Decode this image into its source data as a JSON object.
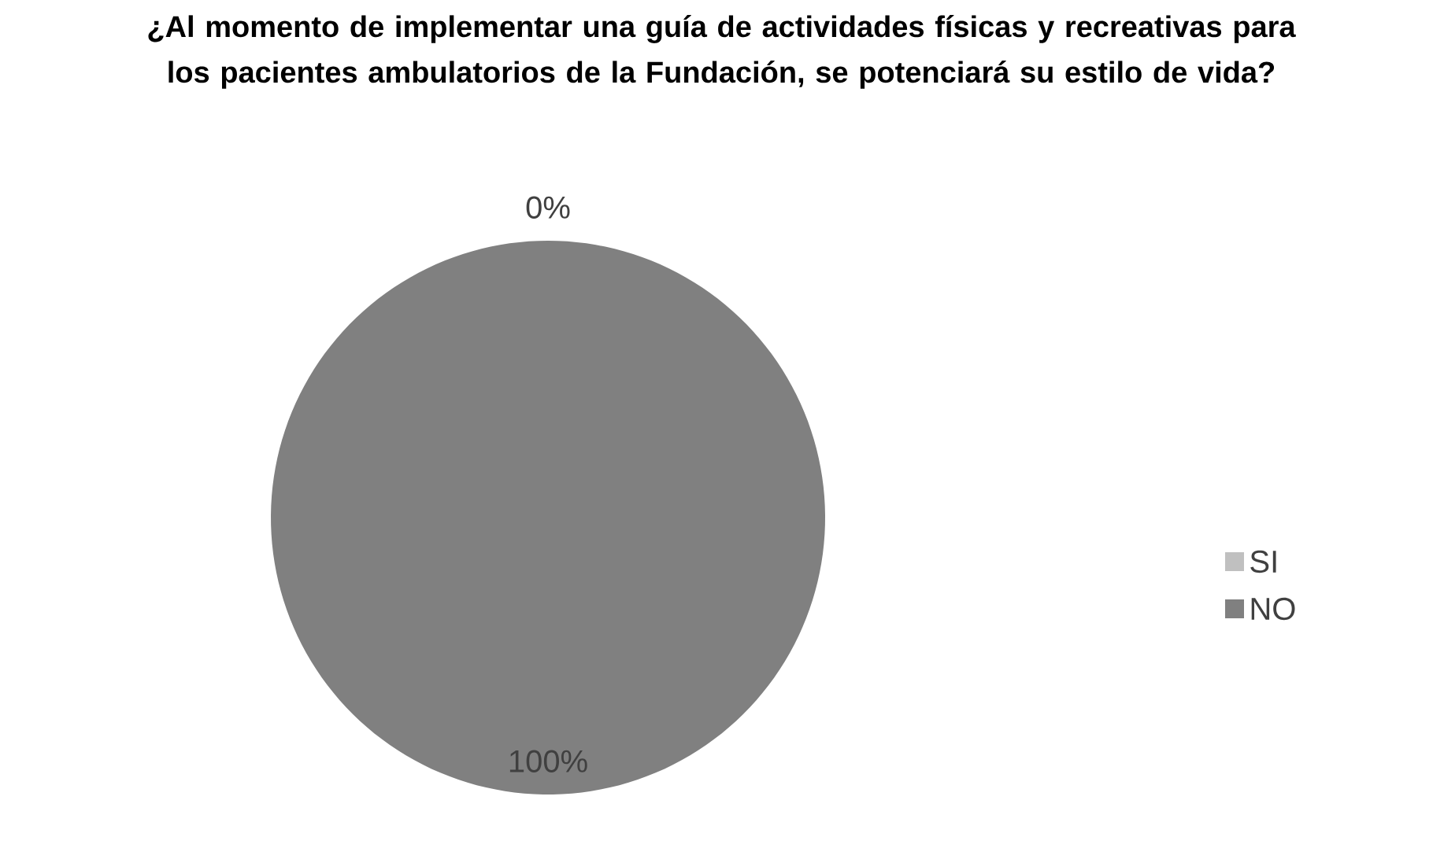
{
  "chart_data": {
    "type": "pie",
    "title": "¿Al momento de implementar una guía de actividades físicas y recreativas para los pacientes ambulatorios de la Fundación, se potenciará su estilo de vida?",
    "categories": [
      "SI",
      "NO"
    ],
    "values": [
      0,
      100
    ],
    "colors": [
      "#c0c0c0",
      "#808080"
    ],
    "value_labels": [
      "0%",
      "100%"
    ],
    "legend": "right"
  }
}
